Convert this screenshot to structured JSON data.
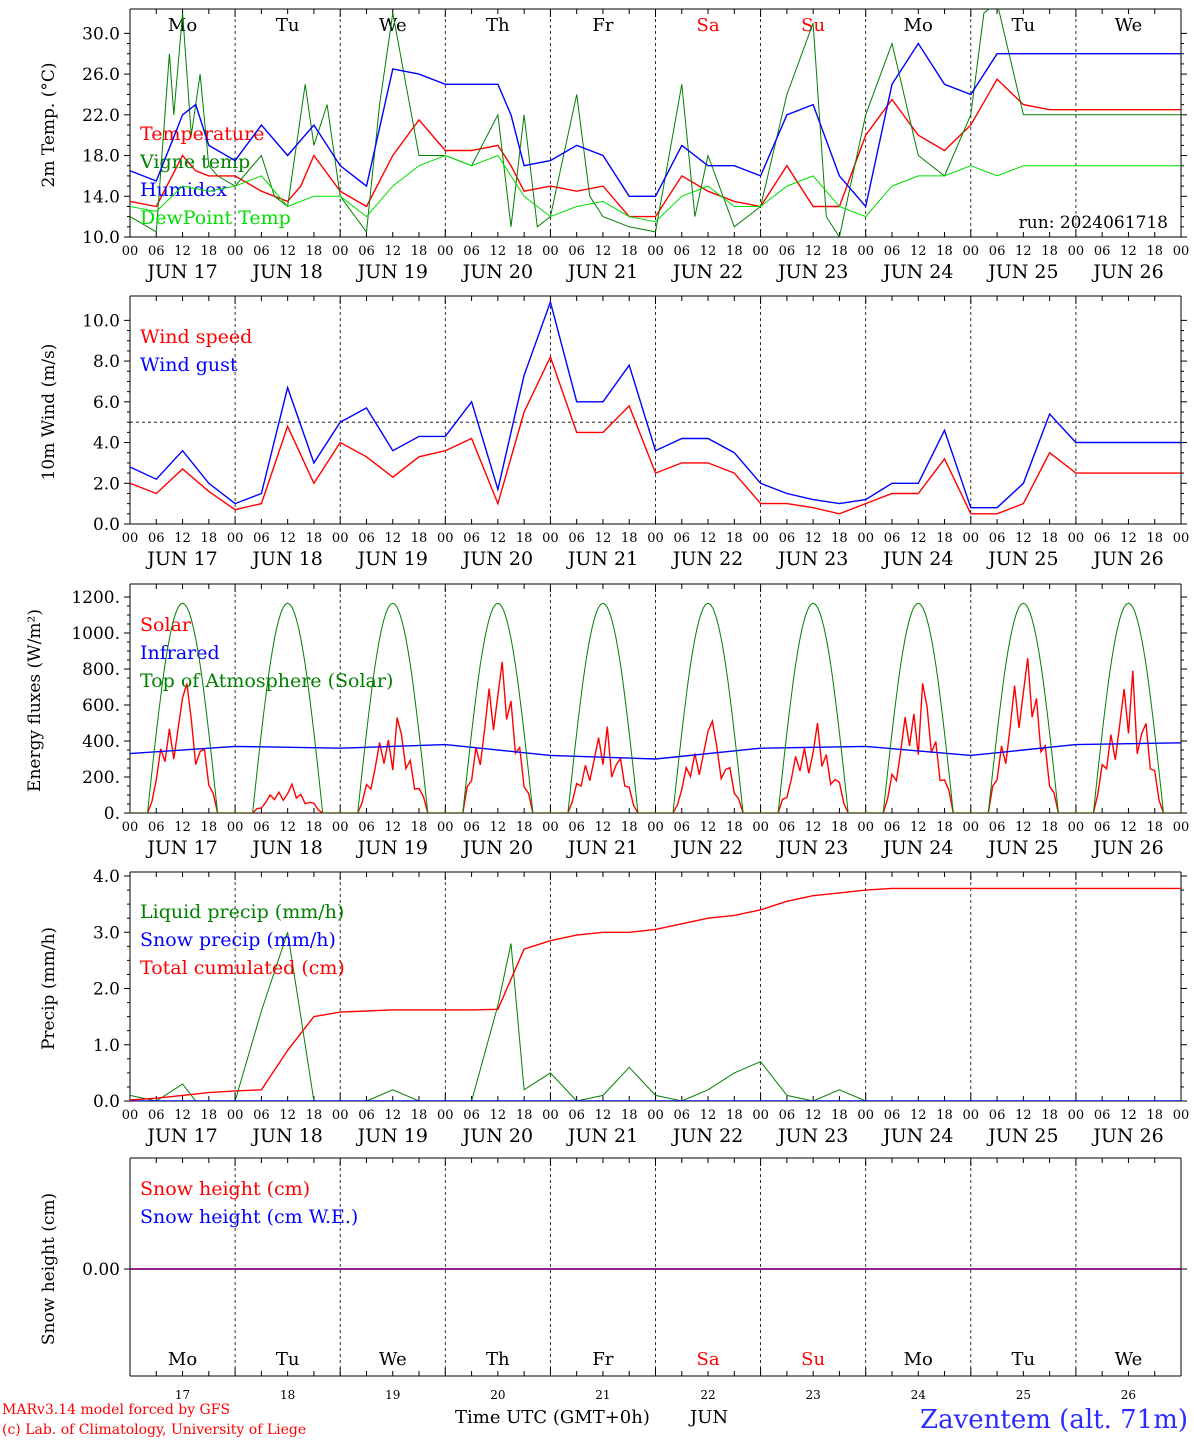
{
  "run_label": "run: 2024061718",
  "footer": {
    "credit1": "MARv3.14 model forced by GFS",
    "credit2": "(c) Lab. of Climatology, University of Liege",
    "xaxis_title": "Time UTC (GMT+0h)",
    "month": "JUN",
    "station": "Zaventem (alt. 71m)"
  },
  "days": [
    {
      "abbr": "Mo",
      "date": "JUN 17",
      "num": "17",
      "weekend": false
    },
    {
      "abbr": "Tu",
      "date": "JUN 18",
      "num": "18",
      "weekend": false
    },
    {
      "abbr": "We",
      "date": "JUN 19",
      "num": "19",
      "weekend": false
    },
    {
      "abbr": "Th",
      "date": "JUN 20",
      "num": "20",
      "weekend": false
    },
    {
      "abbr": "Fr",
      "date": "JUN 21",
      "num": "21",
      "weekend": false
    },
    {
      "abbr": "Sa",
      "date": "JUN 22",
      "num": "22",
      "weekend": true
    },
    {
      "abbr": "Su",
      "date": "JUN 23",
      "num": "23",
      "weekend": true
    },
    {
      "abbr": "Mo",
      "date": "JUN 24",
      "num": "24",
      "weekend": false
    },
    {
      "abbr": "Tu",
      "date": "JUN 25",
      "num": "25",
      "weekend": false
    },
    {
      "abbr": "We",
      "date": "JUN 26",
      "num": "26",
      "weekend": false
    }
  ],
  "hour_ticks": [
    "00",
    "06",
    "12",
    "18"
  ],
  "colors": {
    "red": "#ff0000",
    "green": "#008000",
    "blue": "#0000ff",
    "lightgreen": "#00dd00",
    "purple": "#800080",
    "dashed": "#000000"
  },
  "chart_data": [
    {
      "type": "line",
      "ylabel": "2m Temp. (°C)",
      "ylim": [
        10,
        32
      ],
      "yticks": [
        10,
        14,
        18,
        22,
        26,
        30
      ],
      "ytick_labels": [
        "10.0",
        "14.0",
        "18.0",
        "22.0",
        "26.0",
        "30.0"
      ],
      "x_unit": "hours since JUN 17 00 UTC",
      "series": [
        {
          "name": "Temperature",
          "color": "red",
          "x": [
            0,
            6,
            12,
            15,
            18,
            24,
            30,
            36,
            39,
            42,
            48,
            54,
            60,
            66,
            72,
            78,
            84,
            87,
            90,
            96,
            102,
            108,
            114,
            120,
            126,
            132,
            138,
            144,
            150,
            156,
            162,
            168,
            174,
            180,
            186,
            192,
            198,
            204,
            210,
            216,
            222,
            228,
            234,
            240
          ],
          "y": [
            13.5,
            13,
            18,
            16.5,
            16,
            16,
            14.5,
            13.5,
            15,
            18,
            14.5,
            13,
            18,
            21.5,
            18.5,
            18.5,
            19,
            17,
            14.5,
            15,
            14.5,
            15,
            12,
            12,
            16,
            14.5,
            13.5,
            13,
            17,
            13,
            13,
            20,
            23.5,
            20,
            18.5,
            21,
            25.5,
            23,
            22.5,
            22.5,
            22.5,
            22.5,
            22.5,
            22.5
          ]
        },
        {
          "name": "Vigne temp",
          "color": "green",
          "x": [
            0,
            6,
            9,
            10,
            12,
            14,
            16,
            18,
            20,
            24,
            30,
            33,
            36,
            40,
            42,
            45,
            48,
            54,
            57,
            60,
            63,
            66,
            72,
            78,
            84,
            87,
            90,
            93,
            96,
            102,
            105,
            108,
            114,
            120,
            126,
            129,
            132,
            138,
            144,
            150,
            156,
            159,
            162,
            168,
            174,
            180,
            186,
            192,
            195,
            198,
            204,
            210,
            216,
            222,
            228,
            234,
            240
          ],
          "y": [
            12,
            10.5,
            28,
            22,
            32,
            20,
            26,
            17,
            16,
            15,
            18,
            14,
            13,
            25,
            19,
            23,
            14,
            10.5,
            23,
            32,
            25,
            18,
            18,
            17,
            22,
            11,
            22,
            11,
            12,
            24,
            14,
            12,
            11,
            10.5,
            25,
            12,
            18,
            11,
            13,
            24,
            31,
            12,
            10,
            22,
            29,
            18,
            16,
            22,
            32,
            33,
            22,
            22,
            22,
            22,
            22,
            22,
            22
          ]
        },
        {
          "name": "Humidex",
          "color": "blue",
          "x": [
            0,
            6,
            12,
            15,
            18,
            24,
            30,
            36,
            42,
            48,
            54,
            60,
            66,
            72,
            78,
            84,
            87,
            90,
            96,
            102,
            108,
            114,
            120,
            126,
            132,
            138,
            144,
            150,
            156,
            162,
            168,
            174,
            180,
            186,
            192,
            198,
            204,
            210,
            216,
            222,
            228,
            234,
            240
          ],
          "y": [
            16.5,
            15.5,
            22,
            23,
            19,
            17.5,
            21,
            18,
            21,
            17,
            15,
            26.5,
            26,
            25,
            25,
            25,
            22,
            17,
            17.5,
            19,
            18,
            14,
            14,
            19,
            17,
            17,
            16,
            22,
            23,
            16,
            13,
            25,
            29,
            25,
            24,
            28,
            28,
            28,
            28,
            28,
            28,
            28,
            28
          ]
        },
        {
          "name": "DewPoint Temp",
          "color": "lightgreen",
          "x": [
            0,
            6,
            12,
            18,
            24,
            30,
            36,
            42,
            48,
            54,
            60,
            66,
            72,
            78,
            84,
            90,
            96,
            102,
            108,
            114,
            120,
            126,
            132,
            138,
            144,
            150,
            156,
            162,
            168,
            174,
            180,
            186,
            192,
            198,
            204,
            210,
            216,
            222,
            228,
            234,
            240
          ],
          "y": [
            13,
            12.5,
            15,
            14.5,
            15,
            16,
            13,
            14,
            14,
            12,
            15,
            17,
            18,
            17,
            18,
            14,
            12,
            13,
            13.5,
            12,
            11.5,
            14,
            15,
            13,
            13,
            15,
            16,
            13,
            12,
            15,
            16,
            16,
            17,
            16,
            17,
            17,
            17,
            17,
            17,
            17,
            17
          ]
        }
      ]
    },
    {
      "type": "line",
      "ylabel": "10m Wind (m/s)",
      "ylim": [
        0,
        11
      ],
      "yticks": [
        0,
        2,
        4,
        6,
        8,
        10
      ],
      "ytick_labels": [
        "0.0",
        "2.0",
        "4.0",
        "6.0",
        "8.0",
        "10.0"
      ],
      "reference_line": 5,
      "x_unit": "hours since JUN 17 00 UTC",
      "series": [
        {
          "name": "Wind speed",
          "color": "red",
          "x": [
            0,
            6,
            12,
            18,
            24,
            30,
            36,
            42,
            48,
            54,
            60,
            66,
            72,
            78,
            84,
            90,
            96,
            102,
            108,
            114,
            120,
            126,
            132,
            138,
            144,
            150,
            156,
            162,
            168,
            174,
            180,
            186,
            192,
            198,
            204,
            210,
            216,
            222,
            228,
            234,
            240
          ],
          "y": [
            2,
            1.5,
            2.7,
            1.6,
            0.7,
            1,
            4.8,
            2,
            4,
            3.3,
            2.3,
            3.3,
            3.6,
            4.2,
            1,
            5.5,
            8.2,
            4.5,
            4.5,
            5.8,
            2.5,
            3,
            3,
            2.5,
            1,
            1,
            0.8,
            0.5,
            1,
            1.5,
            1.5,
            3.2,
            0.5,
            0.5,
            1,
            3.5,
            2.5,
            2.5,
            2.5,
            2.5,
            2.5
          ]
        },
        {
          "name": "Wind gust",
          "color": "blue",
          "x": [
            0,
            6,
            12,
            18,
            24,
            30,
            36,
            42,
            48,
            54,
            60,
            66,
            72,
            78,
            84,
            90,
            96,
            102,
            108,
            114,
            120,
            126,
            132,
            138,
            144,
            150,
            156,
            162,
            168,
            174,
            180,
            186,
            192,
            198,
            204,
            210,
            216,
            222,
            228,
            234,
            240
          ],
          "y": [
            2.8,
            2.2,
            3.6,
            2,
            1,
            1.5,
            6.7,
            3,
            5,
            5.7,
            3.6,
            4.3,
            4.3,
            6,
            1.7,
            7.3,
            10.9,
            6,
            6,
            7.8,
            3.6,
            4.2,
            4.2,
            3.5,
            2,
            1.5,
            1.2,
            1,
            1.2,
            2,
            2,
            4.6,
            0.8,
            0.8,
            2,
            5.4,
            4,
            4,
            4,
            4,
            4
          ]
        }
      ]
    },
    {
      "type": "line",
      "ylabel": "Energy fluxes (W/m²)",
      "ylim": [
        0,
        1250
      ],
      "yticks": [
        0,
        200,
        400,
        600,
        800,
        1000,
        1200
      ],
      "ytick_labels": [
        "0.",
        "200.",
        "400.",
        "600.",
        "800.",
        "1000.",
        "1200."
      ],
      "x_unit": "hours since JUN 17 00 UTC",
      "series": [
        {
          "name": "Solar",
          "color": "red",
          "daily_peaks": [
            720,
            160,
            530,
            840,
            480,
            510,
            500,
            720,
            860,
            790
          ]
        },
        {
          "name": "Infrared",
          "color": "blue",
          "x": [
            0,
            24,
            48,
            72,
            96,
            120,
            144,
            168,
            192,
            216,
            240
          ],
          "y": [
            330,
            370,
            360,
            380,
            320,
            300,
            360,
            370,
            320,
            380,
            390
          ]
        },
        {
          "name": "Top of Atmosphere (Solar)",
          "color": "green",
          "daily_peak": 1165,
          "sunrise_hour": 4,
          "sunset_hour": 20
        }
      ]
    },
    {
      "type": "line",
      "ylabel": "Precip (mm/h)",
      "ylim": [
        0,
        4
      ],
      "yticks": [
        0,
        1,
        2,
        3,
        4
      ],
      "ytick_labels": [
        "0.0",
        "1.0",
        "2.0",
        "3.0",
        "4.0"
      ],
      "x_unit": "hours since JUN 17 00 UTC",
      "series": [
        {
          "name": "Liquid precip (mm/h)",
          "color": "green",
          "x": [
            0,
            6,
            12,
            15,
            18,
            24,
            30,
            36,
            39,
            42,
            48,
            54,
            60,
            66,
            72,
            78,
            84,
            87,
            90,
            96,
            102,
            108,
            114,
            120,
            126,
            132,
            138,
            144,
            150,
            156,
            162,
            168,
            174,
            180,
            186,
            192,
            198,
            204,
            210,
            216,
            222,
            228,
            234,
            240
          ],
          "y": [
            0.1,
            0,
            0.3,
            0,
            0,
            0,
            1.6,
            3,
            1.5,
            0,
            0,
            0,
            0.2,
            0,
            0,
            0,
            1.7,
            2.8,
            0.2,
            0.5,
            0,
            0.1,
            0.6,
            0.1,
            0,
            0.2,
            0.5,
            0.7,
            0.1,
            0,
            0.2,
            0,
            0,
            0,
            0,
            0,
            0,
            0,
            0,
            0,
            0,
            0,
            0,
            0
          ]
        },
        {
          "name": "Snow precip (mm/h)",
          "color": "blue",
          "x": [
            0,
            240
          ],
          "y": [
            0,
            0
          ]
        },
        {
          "name": "Total cumulated (cm)",
          "color": "red",
          "x": [
            0,
            6,
            12,
            18,
            24,
            30,
            36,
            42,
            48,
            54,
            60,
            66,
            72,
            78,
            84,
            90,
            96,
            102,
            108,
            114,
            120,
            126,
            132,
            138,
            144,
            150,
            156,
            162,
            168,
            174,
            180,
            186,
            192,
            198,
            204,
            210,
            216,
            222,
            228,
            234,
            240
          ],
          "y": [
            0.02,
            0.05,
            0.1,
            0.15,
            0.18,
            0.2,
            0.9,
            1.5,
            1.58,
            1.6,
            1.62,
            1.62,
            1.62,
            1.62,
            1.63,
            2.7,
            2.85,
            2.95,
            3,
            3,
            3.05,
            3.15,
            3.25,
            3.3,
            3.4,
            3.55,
            3.65,
            3.7,
            3.75,
            3.78,
            3.78,
            3.78,
            3.78,
            3.78,
            3.78,
            3.78,
            3.78,
            3.78,
            3.78,
            3.78,
            3.78
          ]
        }
      ]
    },
    {
      "type": "line",
      "ylabel": "Snow height (cm)",
      "ylim": [
        -1,
        1
      ],
      "yticks": [
        0
      ],
      "ytick_labels": [
        "0.00"
      ],
      "x_unit": "hours since JUN 17 00 UTC",
      "series": [
        {
          "name": "Snow height (cm)",
          "color": "red",
          "x": [
            0,
            240
          ],
          "y": [
            0,
            0
          ]
        },
        {
          "name": "Snow height (cm W.E.)",
          "color": "blue",
          "x": [
            0,
            240
          ],
          "y": [
            0,
            0
          ]
        }
      ]
    }
  ]
}
